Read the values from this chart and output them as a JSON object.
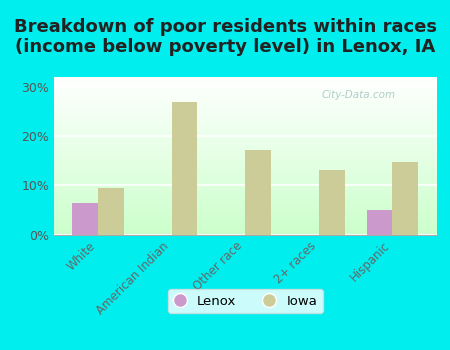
{
  "title": "Breakdown of poor residents within races\n(income below poverty level) in Lenox, IA",
  "categories": [
    "White",
    "American Indian",
    "Other race",
    "2+ races",
    "Hispanic"
  ],
  "lenox_values": [
    6.5,
    0,
    0,
    0,
    5.0
  ],
  "iowa_values": [
    9.5,
    27.0,
    17.2,
    13.2,
    14.7
  ],
  "lenox_color": "#cc99cc",
  "iowa_color": "#cccc99",
  "background_color": "#00eeee",
  "plot_bg_bottom": "#ccffcc",
  "plot_bg_top": "#ffffff",
  "ylim": [
    0,
    32
  ],
  "yticks": [
    0,
    10,
    20,
    30
  ],
  "ytick_labels": [
    "0%",
    "10%",
    "20%",
    "30%"
  ],
  "bar_width": 0.35,
  "title_fontsize": 13,
  "watermark": "City-Data.com"
}
